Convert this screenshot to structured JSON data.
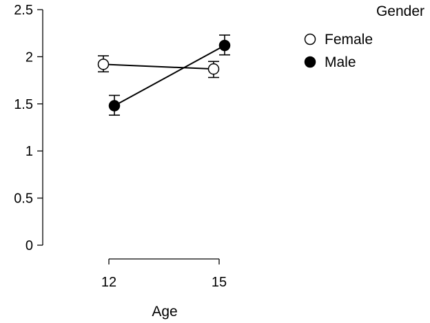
{
  "chart_data": {
    "type": "line",
    "title": "",
    "xlabel": "Age",
    "ylabel": "",
    "categories": [
      "12",
      "15"
    ],
    "ylim": [
      0,
      2.5
    ],
    "yticks": [
      "0",
      "0.5",
      "1",
      "1.5",
      "2",
      "2.5"
    ],
    "grid": false,
    "error_bars": true,
    "legend": {
      "title": "Gender",
      "position": "top-right"
    },
    "series": [
      {
        "name": "Female",
        "marker": "open-circle",
        "values": [
          1.92,
          1.87
        ],
        "error": [
          [
            1.84,
            2.01
          ],
          [
            1.78,
            1.95
          ]
        ]
      },
      {
        "name": "Male",
        "marker": "filled-circle",
        "values": [
          1.48,
          2.12
        ],
        "error": [
          [
            1.38,
            1.59
          ],
          [
            2.02,
            2.23
          ]
        ]
      }
    ]
  }
}
